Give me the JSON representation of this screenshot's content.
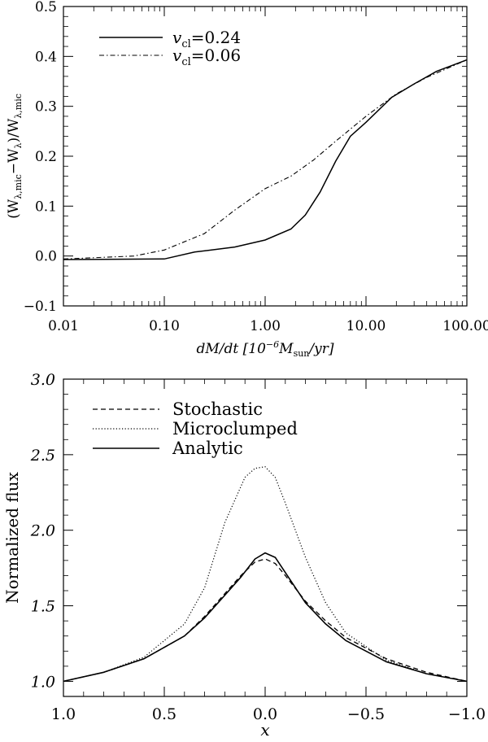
{
  "chart_data": [
    {
      "type": "line",
      "xscale": "log",
      "xlim": [
        0.01,
        100
      ],
      "ylim": [
        -0.1,
        0.5
      ],
      "xlabel": {
        "left": "dM/dt [10",
        "sup": "−6",
        "mid": "M",
        "sub": "sun",
        "right": "/yr]"
      },
      "ylabel": {
        "open": "(W",
        "sub1": "λ,mic",
        "minus": "−W",
        "sub2": "λ",
        "close": ")/W",
        "sub3": "λ,mic"
      },
      "xticks": [
        0.01,
        0.1,
        1.0,
        10.0,
        100.0
      ],
      "xticklabels": [
        "0.01",
        "0.10",
        "1.00",
        "10.00",
        "100.00"
      ],
      "yticks": [
        -0.1,
        0.0,
        0.1,
        0.2,
        0.3,
        0.4,
        0.5
      ],
      "yticklabels": [
        "−0.1",
        "0.0",
        "0.1",
        "0.2",
        "0.3",
        "0.4",
        "0.5"
      ],
      "legend_position": "top-left",
      "series": [
        {
          "name": "v_cl=0.24",
          "legend_main": "v",
          "legend_sub": "cl",
          "legend_value": "=0.24",
          "style": "solid",
          "x": [
            0.01,
            0.1,
            0.2,
            0.5,
            1.0,
            1.8,
            2.5,
            3.5,
            5.0,
            7.0,
            10.0,
            18.0,
            30.0,
            50.0,
            100.0
          ],
          "y": [
            -0.007,
            -0.006,
            0.008,
            0.018,
            0.032,
            0.054,
            0.082,
            0.128,
            0.19,
            0.24,
            0.268,
            0.318,
            0.345,
            0.37,
            0.393
          ]
        },
        {
          "name": "v_cl=0.06",
          "legend_main": "v",
          "legend_sub": "cl",
          "legend_value": "=0.06",
          "style": "dashdot",
          "x": [
            0.01,
            0.05,
            0.1,
            0.25,
            0.5,
            1.0,
            1.8,
            3.0,
            5.0,
            10.0,
            20.0,
            40.0,
            100.0
          ],
          "y": [
            -0.006,
            0.0,
            0.012,
            0.045,
            0.092,
            0.135,
            0.16,
            0.192,
            0.23,
            0.28,
            0.325,
            0.358,
            0.393
          ]
        }
      ]
    },
    {
      "type": "line",
      "xlim": [
        1.0,
        -1.0
      ],
      "ylim": [
        0.9,
        3.0
      ],
      "xlabel": "x",
      "ylabel": "Normalized flux",
      "xticks": [
        1.0,
        0.5,
        0.0,
        -0.5,
        -1.0
      ],
      "xticklabels": [
        "1.0",
        "0.5",
        "0.0",
        "−0.5",
        "−1.0"
      ],
      "yticks": [
        1.0,
        1.5,
        2.0,
        2.5,
        3.0
      ],
      "yticklabels": [
        "1.0",
        "1.5",
        "2.0",
        "2.5",
        "3.0"
      ],
      "legend_position": "top-left",
      "series": [
        {
          "name": "Stochastic",
          "style": "dashed",
          "x": [
            1.0,
            0.8,
            0.6,
            0.4,
            0.3,
            0.2,
            0.12,
            0.05,
            0.0,
            -0.05,
            -0.1,
            -0.2,
            -0.3,
            -0.4,
            -0.6,
            -0.8,
            -1.0
          ],
          "y": [
            1.0,
            1.06,
            1.15,
            1.3,
            1.43,
            1.58,
            1.7,
            1.79,
            1.81,
            1.78,
            1.7,
            1.53,
            1.4,
            1.29,
            1.15,
            1.06,
            1.0
          ]
        },
        {
          "name": "Microclumped",
          "style": "dotted",
          "x": [
            1.0,
            0.8,
            0.6,
            0.4,
            0.3,
            0.2,
            0.1,
            0.05,
            0.0,
            -0.05,
            -0.1,
            -0.2,
            -0.3,
            -0.4,
            -0.6,
            -0.8,
            -1.0
          ],
          "y": [
            1.0,
            1.06,
            1.16,
            1.38,
            1.62,
            2.05,
            2.35,
            2.41,
            2.42,
            2.35,
            2.18,
            1.82,
            1.52,
            1.32,
            1.14,
            1.05,
            1.0
          ]
        },
        {
          "name": "Analytic",
          "style": "solid",
          "x": [
            1.0,
            0.8,
            0.6,
            0.4,
            0.3,
            0.2,
            0.12,
            0.05,
            0.0,
            -0.05,
            -0.1,
            -0.2,
            -0.3,
            -0.4,
            -0.6,
            -0.8,
            -1.0
          ],
          "y": [
            1.0,
            1.06,
            1.15,
            1.3,
            1.42,
            1.57,
            1.69,
            1.81,
            1.85,
            1.82,
            1.72,
            1.52,
            1.38,
            1.27,
            1.13,
            1.05,
            1.0
          ]
        }
      ]
    }
  ]
}
